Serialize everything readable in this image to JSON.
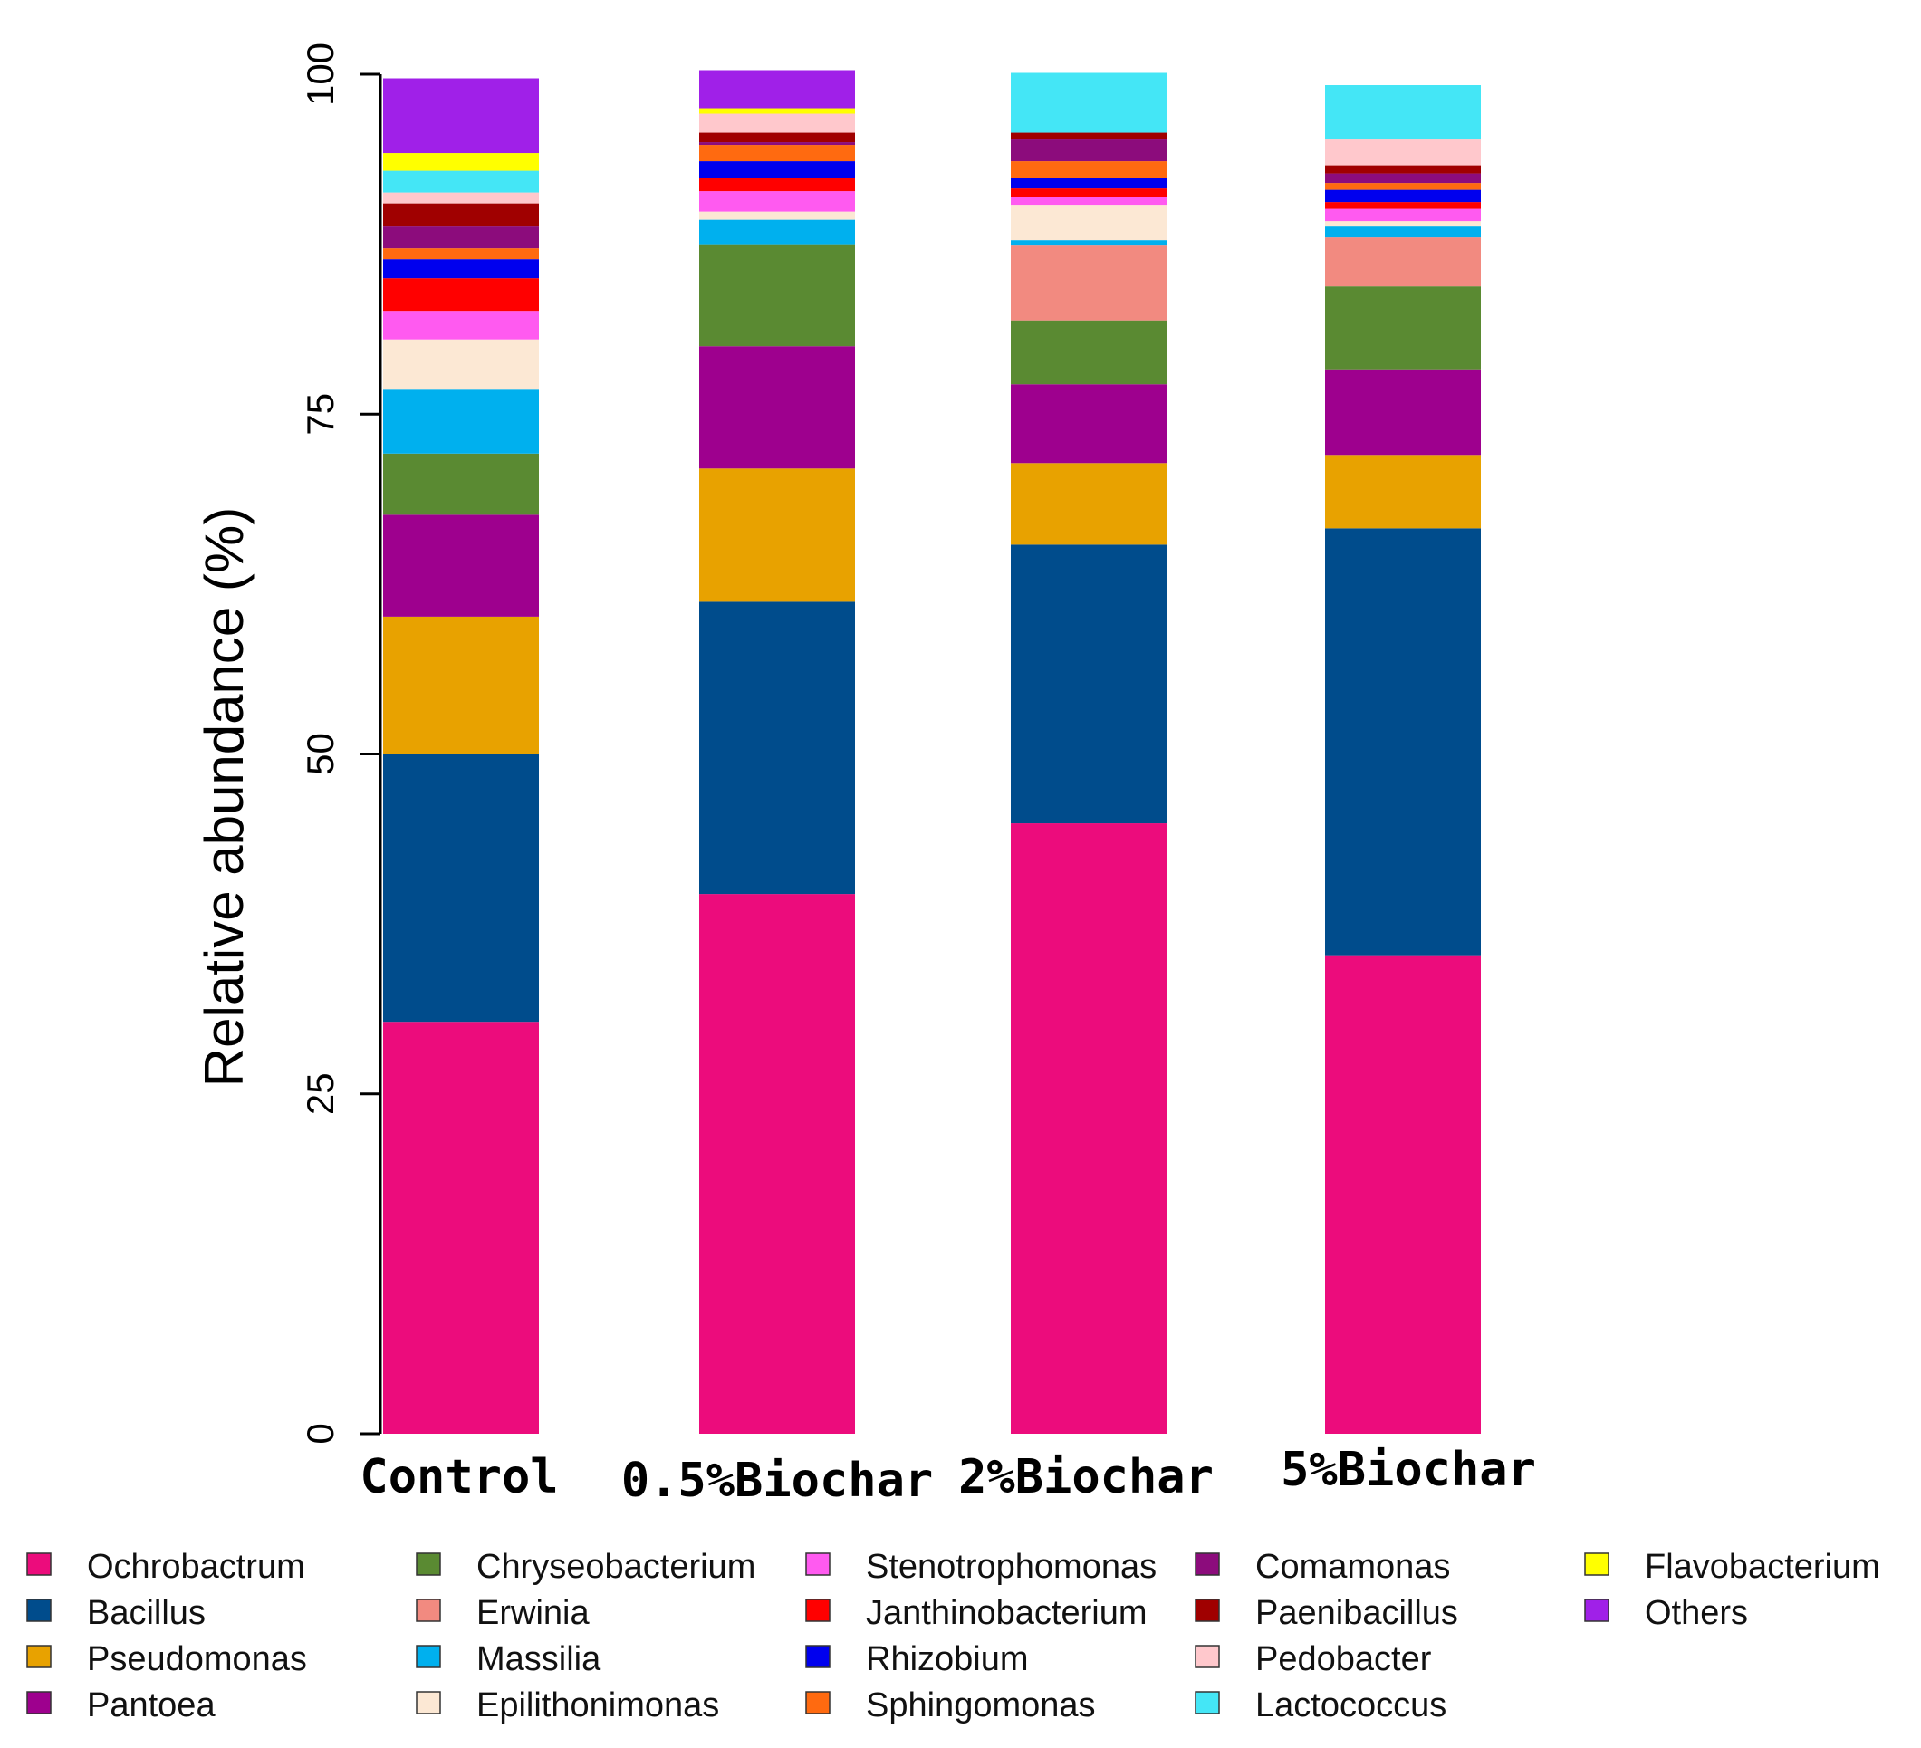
{
  "chart_data": {
    "type": "bar",
    "stacked": true,
    "title": "",
    "xlabel": "",
    "ylabel": "Relative abundance (%)",
    "ylim": [
      0,
      100
    ],
    "yticks": [
      "0",
      "25",
      "50",
      "75",
      "100"
    ],
    "categories": [
      "Control",
      "0.5%Biochar",
      "2%Biochar",
      "5%Biochar"
    ],
    "series": [
      {
        "name": "Ochrobactrum",
        "color": "#EC0C7C",
        "values": [
          30.3,
          39.7,
          44.9,
          35.2
        ]
      },
      {
        "name": "Bacillus",
        "color": "#004C8C",
        "values": [
          19.7,
          21.5,
          20.5,
          31.4
        ]
      },
      {
        "name": "Pseudomonas",
        "color": "#E8A200",
        "values": [
          10.1,
          9.8,
          6.0,
          5.4
        ]
      },
      {
        "name": "Pantoea",
        "color": "#9E008E",
        "values": [
          7.5,
          9.0,
          5.8,
          6.3
        ]
      },
      {
        "name": "Chryseobacterium",
        "color": "#5A8A32",
        "values": [
          4.5,
          7.5,
          4.7,
          6.1
        ]
      },
      {
        "name": "Erwinia",
        "color": "#F28A80",
        "values": [
          0.0,
          0.0,
          5.5,
          3.6
        ]
      },
      {
        "name": "Massilia",
        "color": "#00B0EE",
        "values": [
          4.7,
          1.8,
          0.4,
          0.8
        ]
      },
      {
        "name": "Epilithonimonas",
        "color": "#FCE8D4",
        "values": [
          3.7,
          0.6,
          2.6,
          0.4
        ]
      },
      {
        "name": "Stenotrophomonas",
        "color": "#FF5AF0",
        "values": [
          2.1,
          1.5,
          0.6,
          0.9
        ]
      },
      {
        "name": "Janthinobacterium",
        "color": "#FF0000",
        "values": [
          2.4,
          1.0,
          0.6,
          0.5
        ]
      },
      {
        "name": "Rhizobium",
        "color": "#0000EE",
        "values": [
          1.4,
          1.2,
          0.8,
          0.9
        ]
      },
      {
        "name": "Sphingomonas",
        "color": "#FF6A10",
        "values": [
          0.8,
          1.2,
          1.2,
          0.5
        ]
      },
      {
        "name": "Comamonas",
        "color": "#8C0C7C",
        "values": [
          1.6,
          0.2,
          1.6,
          0.7
        ]
      },
      {
        "name": "Paenibacillus",
        "color": "#A00000",
        "values": [
          1.7,
          0.7,
          0.5,
          0.6
        ]
      },
      {
        "name": "Pedobacter",
        "color": "#FFC8CC",
        "values": [
          0.8,
          1.4,
          0.0,
          1.9
        ]
      },
      {
        "name": "Lactococcus",
        "color": "#44E6F6",
        "values": [
          1.6,
          0.0,
          4.4,
          4.0
        ]
      },
      {
        "name": "Flavobacterium",
        "color": "#FFFF00",
        "values": [
          1.3,
          0.4,
          0.0,
          0.0
        ]
      },
      {
        "name": "Others",
        "color": "#A020E8",
        "values": [
          5.5,
          2.8,
          0.0,
          0.0
        ]
      }
    ],
    "legend": {
      "placement": "bottom",
      "columns": [
        [
          "Ochrobactrum",
          "Bacillus",
          "Pseudomonas",
          "Pantoea"
        ],
        [
          "Chryseobacterium",
          "Erwinia",
          "Massilia",
          "Epilithonimonas"
        ],
        [
          "Stenotrophomonas",
          "Janthinobacterium",
          "Rhizobium",
          "Sphingomonas"
        ],
        [
          "Comamonas",
          "Paenibacillus",
          "Pedobacter",
          "Lactococcus"
        ],
        [
          "Flavobacterium",
          "Others"
        ]
      ],
      "labels": {
        "Ochrobactrum": "Ochrobactrum",
        "Bacillus": "Bacillus",
        "Pseudomonas": "Pseudomonas",
        "Pantoea": "Pantoea",
        "Chryseobacterium": "Chryseobacterium",
        "Erwinia": " Erwinia",
        "Massilia": "Massilia",
        "Epilithonimonas": "Epilithonimonas",
        "Stenotrophomonas": "Stenotrophomonas",
        "Janthinobacterium": "Janthinobacterium",
        "Rhizobium": "Rhizobium",
        "Sphingomonas": "Sphingomonas",
        "Comamonas": "Comamonas",
        "Paenibacillus": "Paenibacillus",
        "Pedobacter": "Pedobacter",
        "Lactococcus": "Lactococcus",
        "Flavobacterium": "Flavobacterium",
        "Others": " Others"
      }
    }
  }
}
